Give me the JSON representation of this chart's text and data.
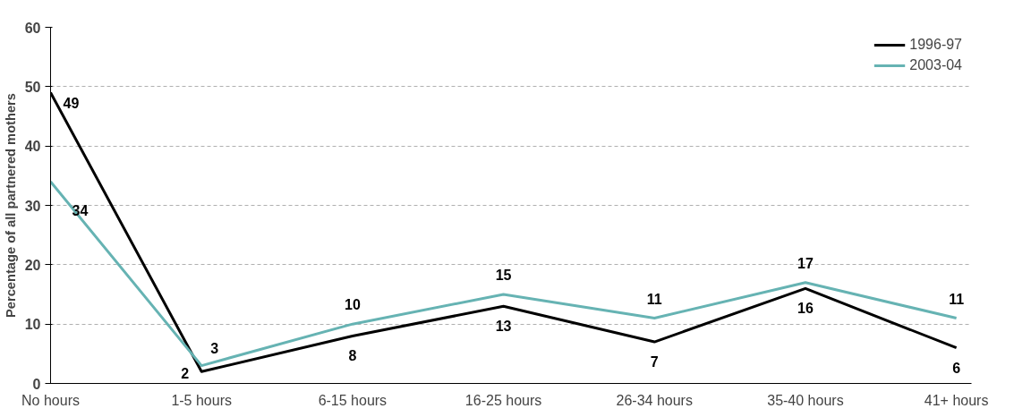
{
  "chart_data": {
    "type": "line",
    "ylabel": "Percentage of all partnered mothers",
    "categories": [
      "No hours",
      "1-5 hours",
      "6-15 hours",
      "16-25 hours",
      "26-34 hours",
      "35-40 hours",
      "41+ hours"
    ],
    "series": [
      {
        "name": "1996-97",
        "color": "#000000",
        "values": [
          49,
          2,
          8,
          13,
          7,
          16,
          6
        ]
      },
      {
        "name": "2003-04",
        "color": "#66b3b3",
        "values": [
          34,
          3,
          10,
          15,
          11,
          17,
          11
        ]
      }
    ],
    "ylim": [
      0,
      60
    ],
    "yticks": [
      0,
      10,
      20,
      30,
      40,
      50,
      60
    ],
    "grid": "y",
    "legend": "top right",
    "data_labels": true,
    "marker": "none",
    "line_style": "solid"
  }
}
